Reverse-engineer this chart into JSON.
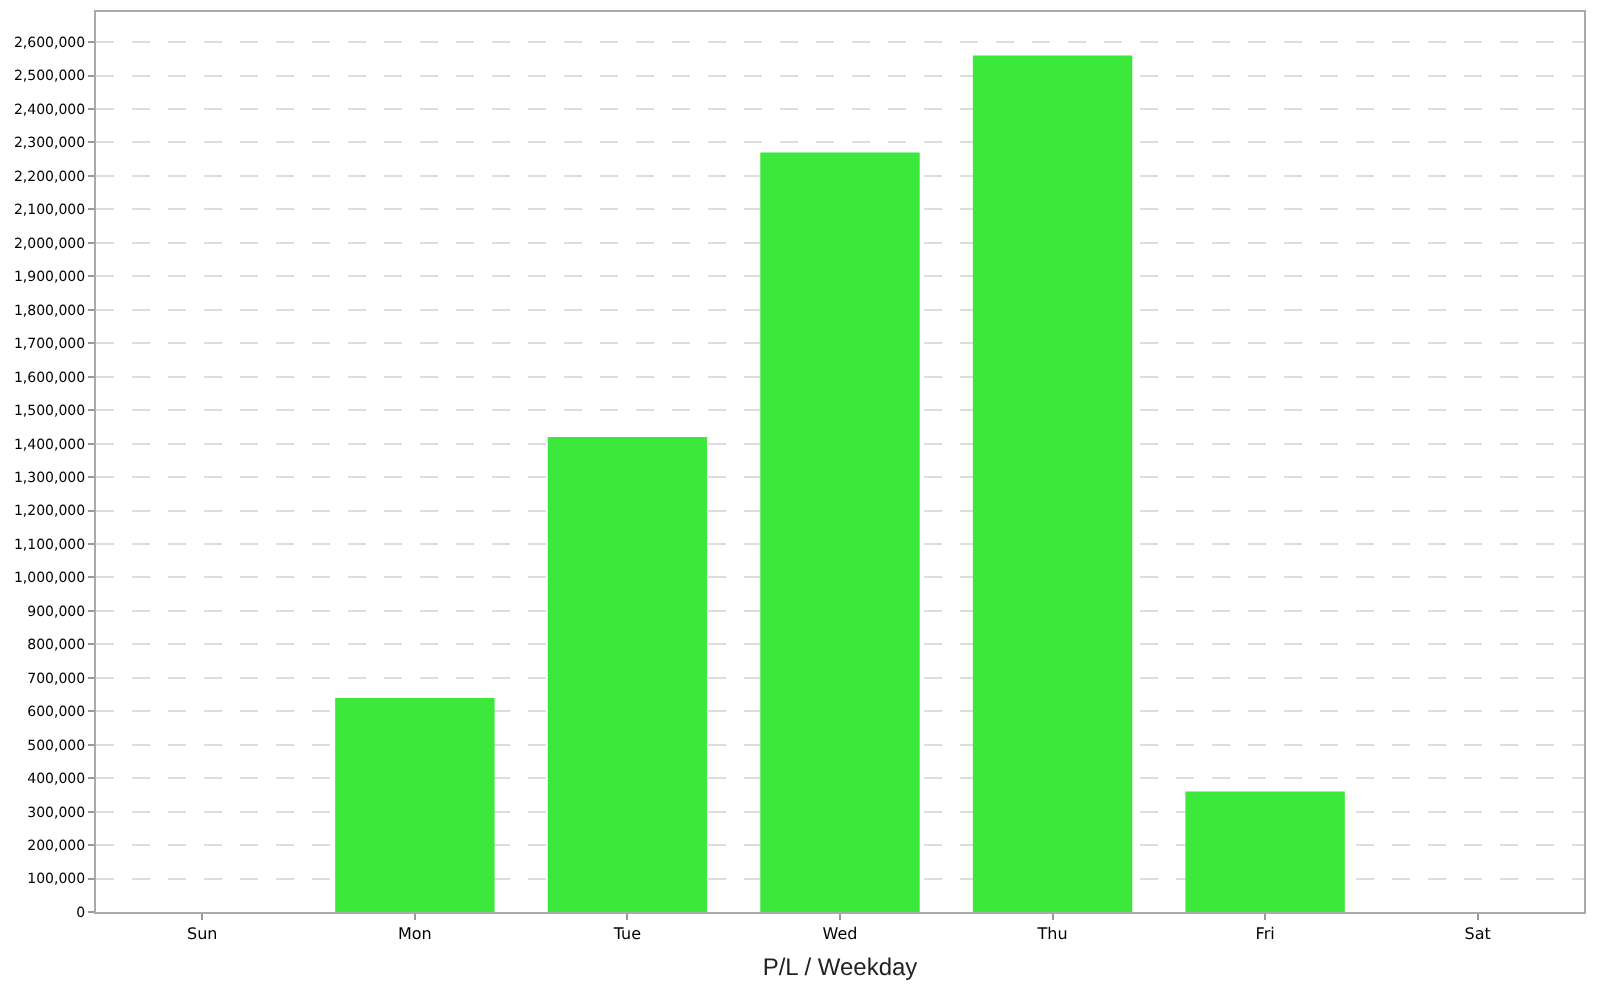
{
  "chart_data": {
    "type": "bar",
    "xlabel": "P/L / Weekday",
    "categories": [
      "Sun",
      "Mon",
      "Tue",
      "Wed",
      "Thu",
      "Fri",
      "Sat"
    ],
    "values": [
      0,
      640000,
      1420000,
      2270000,
      2560000,
      360000,
      0
    ],
    "color": "#3de83d",
    "ylim": [
      0,
      2690000
    ],
    "yticks": [
      {
        "value": 0,
        "label": "0"
      },
      {
        "value": 100000,
        "label": "100,000"
      },
      {
        "value": 200000,
        "label": "200,000"
      },
      {
        "value": 300000,
        "label": "300,000"
      },
      {
        "value": 400000,
        "label": "400,000"
      },
      {
        "value": 500000,
        "label": "500,000"
      },
      {
        "value": 600000,
        "label": "600,000"
      },
      {
        "value": 700000,
        "label": "700,000"
      },
      {
        "value": 800000,
        "label": "800,000"
      },
      {
        "value": 900000,
        "label": "900,000"
      },
      {
        "value": 1000000,
        "label": "1,000,000"
      },
      {
        "value": 1100000,
        "label": "1,100,000"
      },
      {
        "value": 1200000,
        "label": "1,200,000"
      },
      {
        "value": 1300000,
        "label": "1,300,000"
      },
      {
        "value": 1400000,
        "label": "1,400,000"
      },
      {
        "value": 1500000,
        "label": "1,500,000"
      },
      {
        "value": 1600000,
        "label": "1,600,000"
      },
      {
        "value": 1700000,
        "label": "1,700,000"
      },
      {
        "value": 1800000,
        "label": "1,800,000"
      },
      {
        "value": 1900000,
        "label": "1,900,000"
      },
      {
        "value": 2000000,
        "label": "2,000,000"
      },
      {
        "value": 2100000,
        "label": "2,100,000"
      },
      {
        "value": 2200000,
        "label": "2,200,000"
      },
      {
        "value": 2300000,
        "label": "2,300,000"
      },
      {
        "value": 2400000,
        "label": "2,400,000"
      },
      {
        "value": 2500000,
        "label": "2,500,000"
      },
      {
        "value": 2600000,
        "label": "2,600,000"
      }
    ],
    "grid": "y"
  }
}
